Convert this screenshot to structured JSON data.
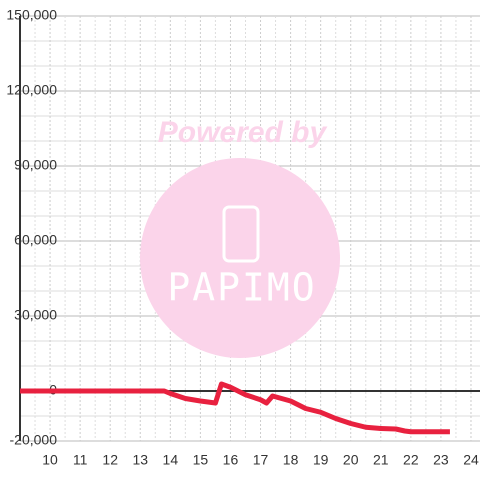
{
  "chart_data": {
    "type": "line",
    "watermark": {
      "text": "Powered by",
      "logo": "PAPIMO"
    },
    "x": [
      9,
      13.8,
      14,
      14.5,
      15,
      15.5,
      15.7,
      16,
      16.5,
      17,
      17.2,
      17.4,
      18,
      18.5,
      19,
      19.5,
      20,
      20.5,
      21,
      21.5,
      21.8,
      22,
      23.3
    ],
    "series": [
      {
        "color": "#e8213f",
        "values": [
          0,
          0,
          -1000,
          -3000,
          -4000,
          -4800,
          2800,
          1500,
          -1500,
          -3500,
          -4800,
          -2000,
          -4000,
          -7000,
          -8500,
          -11000,
          -13000,
          -14500,
          -15000,
          -15200,
          -16000,
          -16300,
          -16300
        ]
      }
    ],
    "xlim": [
      9,
      24.3
    ],
    "xticks": [
      10,
      11,
      12,
      13,
      14,
      15,
      16,
      17,
      18,
      19,
      20,
      21,
      22,
      23,
      24
    ],
    "ylim": [
      -20000,
      150000
    ],
    "yticks": [
      {
        "value": -20000,
        "label": "-20,000"
      },
      0,
      {
        "value": 30000,
        "label": "30,000"
      },
      {
        "value": 60000,
        "label": "60,000"
      },
      {
        "value": 90000,
        "label": "90,000"
      },
      {
        "value": 120000,
        "label": "120,000"
      },
      {
        "value": 150000,
        "label": "150,000"
      }
    ],
    "grid": true
  }
}
